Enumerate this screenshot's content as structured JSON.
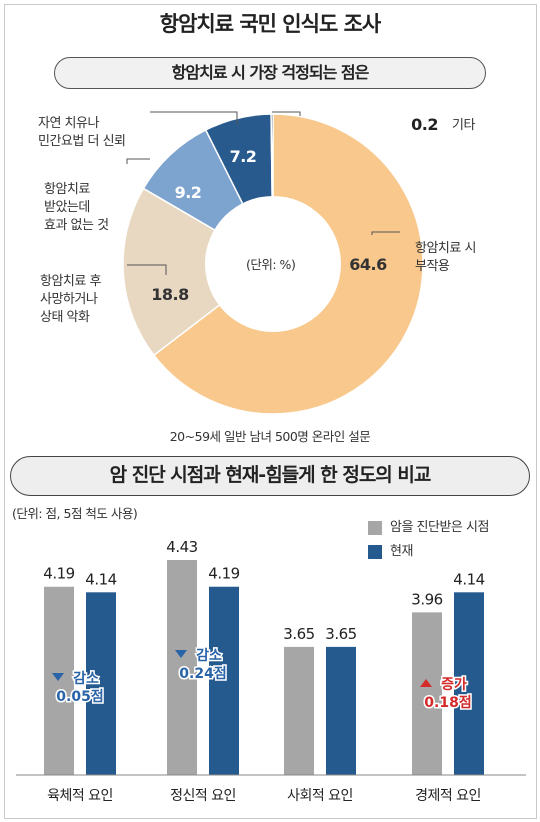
{
  "title": "항암치료 국민 인식도 조사",
  "colors": {
    "pie": [
      "#f8c88c",
      "#e8d8c2",
      "#7da3cf",
      "#285a8e",
      "#222222"
    ],
    "bar_before": "#a6a6a6",
    "bar_now": "#255a8f",
    "decrease": "#2a64a8",
    "increase": "#d42a2a"
  },
  "pie_section": {
    "subtitle": "항암치료 시 가장 걱정되는 점은",
    "unit": "(단위: %)",
    "note": "20~59세 일반 남녀 500명 온라인 설문",
    "labels": {
      "side_effect": [
        "항암치료 시",
        "부작용"
      ],
      "worse": [
        "항암치료 후",
        "사망하거나",
        "상태 악화"
      ],
      "no_effect": [
        "항암치료",
        "받았는데",
        "효과 없는 것"
      ],
      "natural": [
        "자연 치유나",
        "민간요법 더 신뢰"
      ],
      "etc": "기타"
    }
  },
  "bar_section": {
    "title": "암 진단 시점과 현재-힘들게 한 정도의 비교",
    "unit": "(단위: 점, 5점 척도 사용)",
    "legend": [
      "암을 진단받은 시점",
      "현재"
    ],
    "changes": [
      {
        "word": "감소",
        "amount": "0.05점"
      },
      {
        "word": "감소",
        "amount": "0.24점"
      },
      {
        "word": "증가",
        "amount": "0.18점"
      }
    ]
  },
  "chart_data": [
    {
      "type": "pie",
      "title": "항암치료 시 가장 걱정되는 점은",
      "unit": "%",
      "categories": [
        "항암치료 시 부작용",
        "항암치료 후 사망하거나 상태 악화",
        "항암치료 받았는데 효과 없는 것",
        "자연 치유나 민간요법 더 신뢰",
        "기타"
      ],
      "values": [
        64.6,
        18.8,
        9.2,
        7.2,
        0.2
      ],
      "value_labels": [
        "64.6",
        "18.8",
        "9.2",
        "7.2",
        "0.2"
      ]
    },
    {
      "type": "bar",
      "title": "암 진단 시점과 현재-힘들게 한 정도의 비교",
      "categories": [
        "육체적 요인",
        "정신적 요인",
        "사회적 요인",
        "경제적 요인"
      ],
      "series": [
        {
          "name": "암을 진단받은 시점",
          "values": [
            4.19,
            4.43,
            3.65,
            3.96
          ],
          "labels": [
            "4.19",
            "4.43",
            "3.65",
            "3.96"
          ]
        },
        {
          "name": "현재",
          "values": [
            4.14,
            4.19,
            3.65,
            4.14
          ],
          "labels": [
            "4.14",
            "4.19",
            "3.65",
            "4.14"
          ]
        }
      ],
      "legend": "top-right",
      "grid": false
    }
  ]
}
